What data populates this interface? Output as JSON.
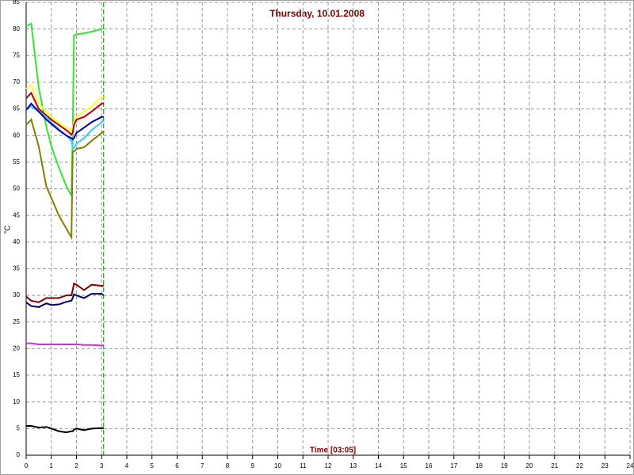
{
  "chart_data": {
    "type": "line",
    "title": "Thursday, 10.01.2008",
    "xlabel": "Time [03:05]",
    "ylabel": "°C",
    "x": [
      0,
      0.2,
      0.5,
      0.8,
      1.0,
      1.3,
      1.6,
      1.8,
      1.85,
      1.9,
      2.0,
      2.3,
      2.6,
      3.0,
      3.08
    ],
    "series": [
      {
        "color": "#33e633",
        "values": [
          80.5,
          81,
          69,
          61.7,
          58,
          54,
          50.5,
          48.7,
          60,
          78.8,
          79,
          79.2,
          79.5,
          80,
          80
        ]
      },
      {
        "color": "#808000",
        "values": [
          62,
          63,
          58,
          50.5,
          48.3,
          45,
          42.5,
          40.9,
          57,
          57,
          57.5,
          57.8,
          59,
          60.5,
          60.8
        ]
      },
      {
        "color": "#ffff33",
        "values": [
          68.8,
          69.5,
          66,
          64.5,
          63.5,
          62.5,
          61.5,
          61,
          61.5,
          62.5,
          63.5,
          64.5,
          65.5,
          67.2,
          67.3
        ]
      },
      {
        "color": "#c00000",
        "values": [
          67,
          68,
          65,
          63.8,
          63,
          62,
          61,
          60.2,
          60.5,
          62,
          63,
          63.5,
          64.5,
          66,
          66
        ]
      },
      {
        "color": "#33ccff",
        "values": [
          65,
          65.5,
          64.5,
          63.5,
          62.5,
          61.2,
          60,
          59,
          57.7,
          57.7,
          58.5,
          59.5,
          61,
          62.5,
          62.8
        ]
      },
      {
        "color": "#0000a0",
        "values": [
          64.8,
          66,
          64.5,
          63,
          62.2,
          61,
          60,
          59.5,
          59.3,
          59.5,
          60.5,
          61.5,
          62.5,
          63.5,
          63.5
        ]
      },
      {
        "color": "#800000",
        "values": [
          29.8,
          29,
          28.7,
          29.5,
          29.5,
          29.5,
          30,
          30,
          31,
          32.2,
          32,
          31,
          32,
          31.8,
          31.8
        ]
      },
      {
        "color": "#000060",
        "values": [
          28.7,
          28,
          27.8,
          28.5,
          28.2,
          28.3,
          28.8,
          29,
          29.5,
          30.2,
          30,
          29.5,
          30.3,
          30.3,
          30
        ]
      },
      {
        "color": "#cc33cc",
        "values": [
          21,
          21,
          20.8,
          20.8,
          20.8,
          20.8,
          20.8,
          20.8,
          20.8,
          20.8,
          20.8,
          20.7,
          20.7,
          20.6,
          20.6
        ]
      },
      {
        "color": "#000000",
        "values": [
          5.5,
          5.5,
          5.2,
          5.3,
          5,
          4.5,
          4.3,
          4.5,
          4.5,
          4.8,
          5,
          4.7,
          5,
          5.1,
          5
        ]
      }
    ],
    "current_time_x": 3.08,
    "current_time_color": "#008000",
    "xlim": [
      0,
      24
    ],
    "xticks": [
      0,
      1,
      2,
      3,
      4,
      5,
      6,
      7,
      8,
      9,
      10,
      11,
      12,
      13,
      14,
      15,
      16,
      17,
      18,
      19,
      20,
      21,
      22,
      23,
      24
    ],
    "ylim": [
      0,
      85
    ],
    "yticks": [
      0,
      5,
      10,
      15,
      20,
      25,
      30,
      35,
      40,
      45,
      50,
      55,
      60,
      65,
      70,
      75,
      80,
      85
    ],
    "grid": true
  }
}
